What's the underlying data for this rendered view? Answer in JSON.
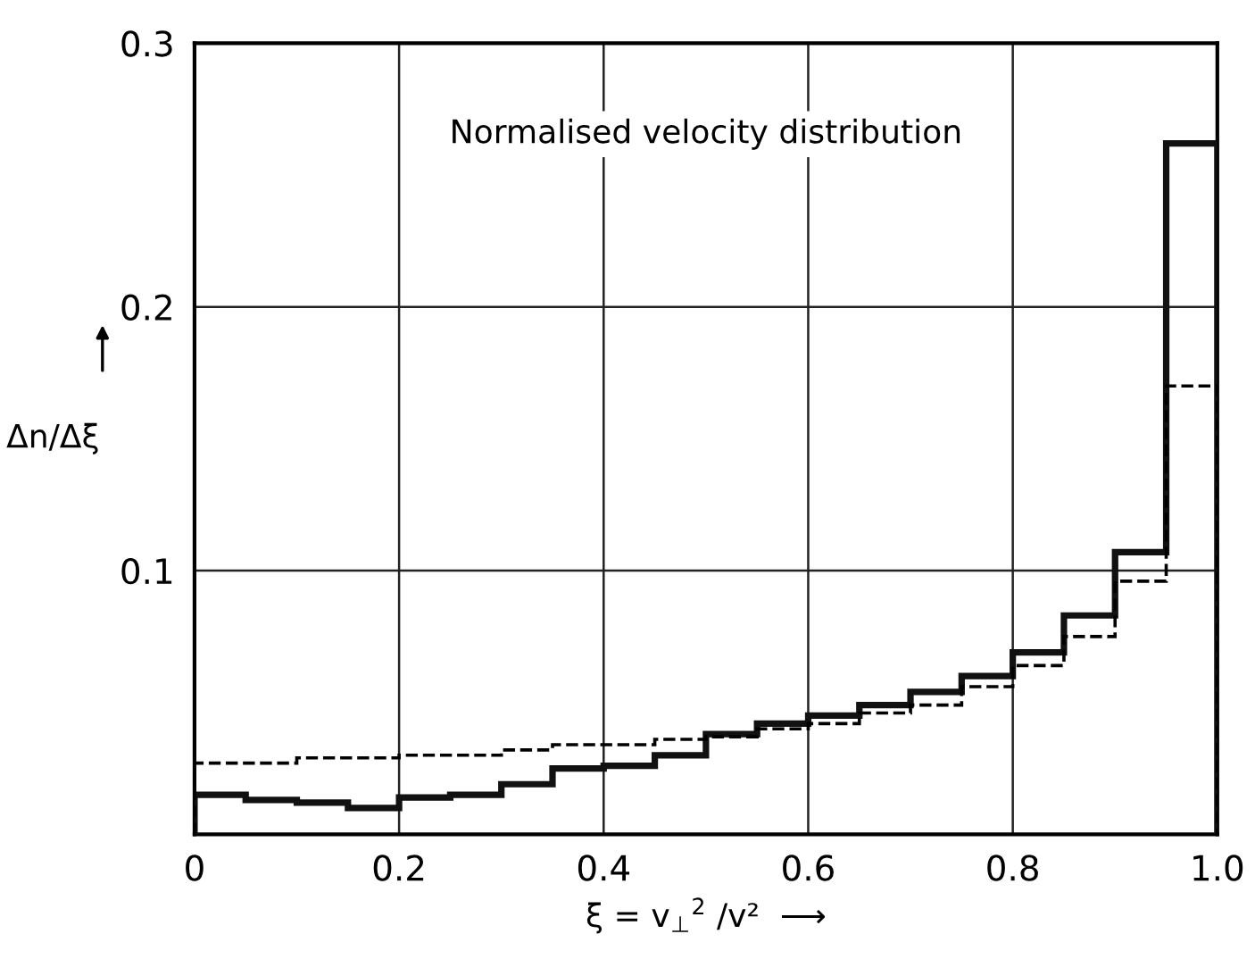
{
  "chart_data": {
    "type": "histogram",
    "title": "Normalised velocity distribution",
    "xlabel": "ξ = v$_{⊥}$$^{2}$ /v²  ⟶",
    "ylabel": "Δn/Δξ",
    "bins": [
      0,
      0.05,
      0.1,
      0.15,
      0.2,
      0.25,
      0.3,
      0.35,
      0.4,
      0.45,
      0.5,
      0.55,
      0.6,
      0.65,
      0.7,
      0.75,
      0.8,
      0.85,
      0.9,
      0.95,
      1.0
    ],
    "series": [
      {
        "color": "#111111",
        "line_style": "solid",
        "values": [
          0.015,
          0.013,
          0.012,
          0.01,
          0.014,
          0.015,
          0.019,
          0.025,
          0.026,
          0.03,
          0.038,
          0.042,
          0.045,
          0.049,
          0.054,
          0.06,
          0.069,
          0.083,
          0.107,
          0.262
        ]
      },
      {
        "color": "#000000",
        "line_style": "dashed",
        "values": [
          0.027,
          0.027,
          0.029,
          0.029,
          0.03,
          0.03,
          0.032,
          0.034,
          0.034,
          0.036,
          0.037,
          0.04,
          0.042,
          0.046,
          0.049,
          0.056,
          0.064,
          0.075,
          0.096,
          0.17
        ]
      }
    ],
    "xlim": [
      0,
      1.0
    ],
    "ylim": [
      0,
      0.3
    ],
    "xticks": [
      0,
      0.2,
      0.4,
      0.6,
      0.8,
      {
        "value": 1.0,
        "label": "1.0"
      }
    ],
    "yticks": [
      0.1,
      0.2,
      0.3
    ],
    "grid": true
  }
}
